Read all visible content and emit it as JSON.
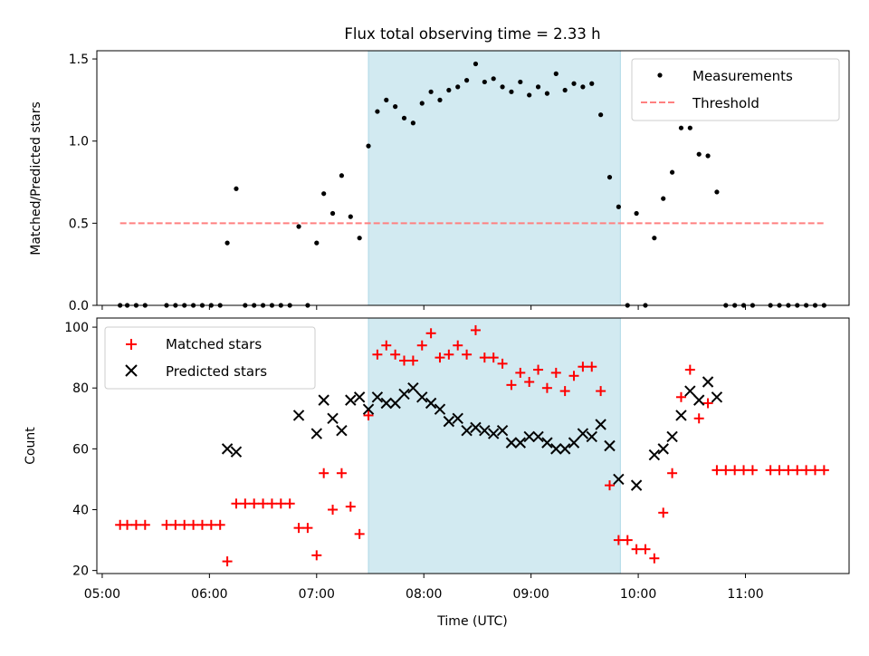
{
  "chart_data": [
    {
      "type": "scatter",
      "title": "Flux total observing time = 2.33 h",
      "ylabel": "Matched/Predicted stars",
      "xlabel": "",
      "ylim": [
        0,
        1.55
      ],
      "yticks": [
        "0.0",
        "0.5",
        "1.0",
        "1.5"
      ],
      "shaded_interval": [
        "07:29",
        "09:50"
      ],
      "shade_color": "#add8e6",
      "legend_position": "upper right",
      "series": [
        {
          "name": "Measurements",
          "marker": "dot",
          "color": "#000000",
          "points": [
            [
              "05:10",
              0
            ],
            [
              "05:14",
              0
            ],
            [
              "05:19",
              0
            ],
            [
              "05:24",
              0
            ],
            [
              "05:36",
              0
            ],
            [
              "05:41",
              0
            ],
            [
              "05:46",
              0
            ],
            [
              "05:51",
              0
            ],
            [
              "05:56",
              0
            ],
            [
              "06:01",
              0
            ],
            [
              "06:06",
              0
            ],
            [
              "06:10",
              0.38
            ],
            [
              "06:15",
              0.71
            ],
            [
              "06:20",
              0
            ],
            [
              "06:25",
              0
            ],
            [
              "06:30",
              0
            ],
            [
              "06:35",
              0
            ],
            [
              "06:40",
              0
            ],
            [
              "06:45",
              0
            ],
            [
              "06:50",
              0.48
            ],
            [
              "06:55",
              0
            ],
            [
              "07:00",
              0.38
            ],
            [
              "07:04",
              0.68
            ],
            [
              "07:09",
              0.56
            ],
            [
              "07:14",
              0.79
            ],
            [
              "07:19",
              0.54
            ],
            [
              "07:24",
              0.41
            ],
            [
              "07:29",
              0.97
            ],
            [
              "07:34",
              1.18
            ],
            [
              "07:39",
              1.25
            ],
            [
              "07:44",
              1.21
            ],
            [
              "07:49",
              1.14
            ],
            [
              "07:54",
              1.11
            ],
            [
              "07:59",
              1.23
            ],
            [
              "08:04",
              1.3
            ],
            [
              "08:09",
              1.25
            ],
            [
              "08:14",
              1.31
            ],
            [
              "08:19",
              1.33
            ],
            [
              "08:24",
              1.37
            ],
            [
              "08:29",
              1.47
            ],
            [
              "08:34",
              1.36
            ],
            [
              "08:39",
              1.38
            ],
            [
              "08:44",
              1.33
            ],
            [
              "08:49",
              1.3
            ],
            [
              "08:54",
              1.36
            ],
            [
              "08:59",
              1.28
            ],
            [
              "09:04",
              1.33
            ],
            [
              "09:09",
              1.29
            ],
            [
              "09:14",
              1.41
            ],
            [
              "09:19",
              1.31
            ],
            [
              "09:24",
              1.35
            ],
            [
              "09:29",
              1.33
            ],
            [
              "09:34",
              1.35
            ],
            [
              "09:39",
              1.16
            ],
            [
              "09:44",
              0.78
            ],
            [
              "09:49",
              0.6
            ],
            [
              "09:54",
              0
            ],
            [
              "09:59",
              0.56
            ],
            [
              "10:04",
              0
            ],
            [
              "10:09",
              0.41
            ],
            [
              "10:14",
              0.65
            ],
            [
              "10:19",
              0.81
            ],
            [
              "10:24",
              1.08
            ],
            [
              "10:29",
              1.08
            ],
            [
              "10:34",
              0.92
            ],
            [
              "10:39",
              0.91
            ],
            [
              "10:44",
              0.69
            ],
            [
              "10:49",
              0
            ],
            [
              "10:54",
              0
            ],
            [
              "10:59",
              0
            ],
            [
              "11:04",
              0
            ],
            [
              "11:14",
              0
            ],
            [
              "11:19",
              0
            ],
            [
              "11:24",
              0
            ],
            [
              "11:29",
              0
            ],
            [
              "11:34",
              0
            ],
            [
              "11:39",
              0
            ],
            [
              "11:44",
              0
            ]
          ]
        },
        {
          "name": "Threshold",
          "style": "dashed line",
          "color": "#ff8080",
          "points": [
            [
              "05:10",
              0.5
            ],
            [
              "11:44",
              0.5
            ]
          ]
        }
      ]
    },
    {
      "type": "scatter",
      "title": "",
      "ylabel": "Count",
      "xlabel": "Time (UTC)",
      "ylim": [
        19,
        103
      ],
      "yticks": [
        "20",
        "40",
        "60",
        "80",
        "100"
      ],
      "xlim": [
        "04:57",
        "11:58"
      ],
      "xticks": [
        "05:00",
        "06:00",
        "07:00",
        "08:00",
        "09:00",
        "10:00",
        "11:00"
      ],
      "shaded_interval": [
        "07:29",
        "09:50"
      ],
      "shade_color": "#add8e6",
      "legend_position": "upper left",
      "series": [
        {
          "name": "Matched stars",
          "marker": "plus",
          "color": "#ff0000",
          "points": [
            [
              "05:10",
              35
            ],
            [
              "05:14",
              35
            ],
            [
              "05:19",
              35
            ],
            [
              "05:24",
              35
            ],
            [
              "05:36",
              35
            ],
            [
              "05:41",
              35
            ],
            [
              "05:46",
              35
            ],
            [
              "05:51",
              35
            ],
            [
              "05:56",
              35
            ],
            [
              "06:01",
              35
            ],
            [
              "06:06",
              35
            ],
            [
              "06:10",
              23
            ],
            [
              "06:15",
              42
            ],
            [
              "06:20",
              42
            ],
            [
              "06:25",
              42
            ],
            [
              "06:30",
              42
            ],
            [
              "06:35",
              42
            ],
            [
              "06:40",
              42
            ],
            [
              "06:45",
              42
            ],
            [
              "06:50",
              34
            ],
            [
              "06:55",
              34
            ],
            [
              "07:00",
              25
            ],
            [
              "07:04",
              52
            ],
            [
              "07:09",
              40
            ],
            [
              "07:14",
              52
            ],
            [
              "07:19",
              41
            ],
            [
              "07:24",
              32
            ],
            [
              "07:29",
              71
            ],
            [
              "07:34",
              91
            ],
            [
              "07:39",
              94
            ],
            [
              "07:44",
              91
            ],
            [
              "07:49",
              89
            ],
            [
              "07:54",
              89
            ],
            [
              "07:59",
              94
            ],
            [
              "08:04",
              98
            ],
            [
              "08:09",
              90
            ],
            [
              "08:14",
              91
            ],
            [
              "08:19",
              94
            ],
            [
              "08:24",
              91
            ],
            [
              "08:29",
              99
            ],
            [
              "08:34",
              90
            ],
            [
              "08:39",
              90
            ],
            [
              "08:44",
              88
            ],
            [
              "08:49",
              81
            ],
            [
              "08:54",
              85
            ],
            [
              "08:59",
              82
            ],
            [
              "09:04",
              86
            ],
            [
              "09:09",
              80
            ],
            [
              "09:14",
              85
            ],
            [
              "09:19",
              79
            ],
            [
              "09:24",
              84
            ],
            [
              "09:29",
              87
            ],
            [
              "09:34",
              87
            ],
            [
              "09:39",
              79
            ],
            [
              "09:44",
              48
            ],
            [
              "09:49",
              30
            ],
            [
              "09:54",
              30
            ],
            [
              "09:59",
              27
            ],
            [
              "10:04",
              27
            ],
            [
              "10:09",
              24
            ],
            [
              "10:14",
              39
            ],
            [
              "10:19",
              52
            ],
            [
              "10:24",
              77
            ],
            [
              "10:29",
              86
            ],
            [
              "10:34",
              70
            ],
            [
              "10:39",
              75
            ],
            [
              "10:44",
              53
            ],
            [
              "10:49",
              53
            ],
            [
              "10:54",
              53
            ],
            [
              "10:59",
              53
            ],
            [
              "11:04",
              53
            ],
            [
              "11:14",
              53
            ],
            [
              "11:19",
              53
            ],
            [
              "11:24",
              53
            ],
            [
              "11:29",
              53
            ],
            [
              "11:34",
              53
            ],
            [
              "11:39",
              53
            ],
            [
              "11:44",
              53
            ]
          ]
        },
        {
          "name": "Predicted stars",
          "marker": "x",
          "color": "#000000",
          "points": [
            [
              "06:10",
              60
            ],
            [
              "06:15",
              59
            ],
            [
              "06:50",
              71
            ],
            [
              "07:00",
              65
            ],
            [
              "07:04",
              76
            ],
            [
              "07:09",
              70
            ],
            [
              "07:14",
              66
            ],
            [
              "07:19",
              76
            ],
            [
              "07:24",
              77
            ],
            [
              "07:29",
              73
            ],
            [
              "07:34",
              77
            ],
            [
              "07:39",
              75
            ],
            [
              "07:44",
              75
            ],
            [
              "07:49",
              78
            ],
            [
              "07:54",
              80
            ],
            [
              "07:59",
              77
            ],
            [
              "08:04",
              75
            ],
            [
              "08:09",
              73
            ],
            [
              "08:14",
              69
            ],
            [
              "08:19",
              70
            ],
            [
              "08:24",
              66
            ],
            [
              "08:29",
              67
            ],
            [
              "08:34",
              66
            ],
            [
              "08:39",
              65
            ],
            [
              "08:44",
              66
            ],
            [
              "08:49",
              62
            ],
            [
              "08:54",
              62
            ],
            [
              "08:59",
              64
            ],
            [
              "09:04",
              64
            ],
            [
              "09:09",
              62
            ],
            [
              "09:14",
              60
            ],
            [
              "09:19",
              60
            ],
            [
              "09:24",
              62
            ],
            [
              "09:29",
              65
            ],
            [
              "09:34",
              64
            ],
            [
              "09:39",
              68
            ],
            [
              "09:44",
              61
            ],
            [
              "09:49",
              50
            ],
            [
              "09:59",
              48
            ],
            [
              "10:09",
              58
            ],
            [
              "10:14",
              60
            ],
            [
              "10:19",
              64
            ],
            [
              "10:24",
              71
            ],
            [
              "10:29",
              79
            ],
            [
              "10:34",
              76
            ],
            [
              "10:39",
              82
            ],
            [
              "10:44",
              77
            ]
          ]
        }
      ]
    }
  ]
}
